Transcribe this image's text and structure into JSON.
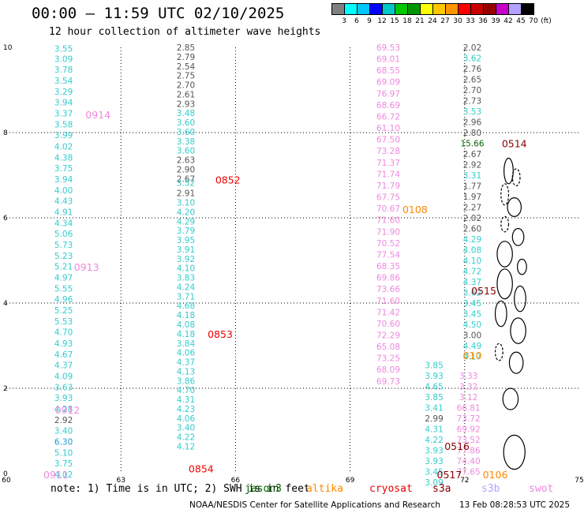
{
  "title": "00:00 – 11:59 UTC 02/10/2025",
  "subtitle": "12 hour collection of altimeter wave heights",
  "color_scale": {
    "unit": "(ft)",
    "labels": [
      "3",
      "6",
      "9",
      "12",
      "15",
      "18",
      "21",
      "24",
      "27",
      "30",
      "33",
      "36",
      "39",
      "42",
      "45",
      "70"
    ],
    "colors": [
      "#808080",
      "#00ffff",
      "#00c8ff",
      "#0000ff",
      "#00c8c8",
      "#00c800",
      "#009600",
      "#ffff00",
      "#ffc800",
      "#ff9600",
      "#ff0000",
      "#c80000",
      "#960000",
      "#c800c8",
      "#b4a0ff",
      "#000000"
    ]
  },
  "axes": {
    "x_ticks": [
      "60",
      "63",
      "66",
      "69",
      "72",
      "75"
    ],
    "y_ticks": [
      "0",
      "2",
      "4",
      "6",
      "8",
      "10"
    ]
  },
  "track_colors": {
    "jason": "#33cccc",
    "gray": "#555555",
    "swot": "#ee88dd",
    "cryosat": "#ee0000",
    "s3a": "#880000",
    "altika": "#ff8800",
    "jason3": "#006600"
  },
  "tracks": [
    {
      "lon": 61.5,
      "color": "jason",
      "readings": [
        {
          "lat": 9.97,
          "v": "3.55"
        },
        {
          "lat": 9.73,
          "v": "3.09"
        },
        {
          "lat": 9.48,
          "v": "3.78"
        },
        {
          "lat": 9.22,
          "v": "3.54"
        },
        {
          "lat": 8.96,
          "v": "3.29"
        },
        {
          "lat": 8.71,
          "v": "3.94"
        },
        {
          "lat": 8.45,
          "v": "3.37"
        },
        {
          "lat": 8.19,
          "v": "3.58"
        },
        {
          "lat": 7.94,
          "v": "3.99"
        },
        {
          "lat": 7.68,
          "v": "4.02"
        },
        {
          "lat": 7.42,
          "v": "4.38"
        },
        {
          "lat": 7.17,
          "v": "3.75"
        },
        {
          "lat": 6.91,
          "v": "3.94"
        },
        {
          "lat": 6.65,
          "v": "4.00"
        },
        {
          "lat": 6.4,
          "v": "4.43"
        },
        {
          "lat": 6.14,
          "v": "4.91"
        },
        {
          "lat": 5.88,
          "v": "4.34"
        },
        {
          "lat": 5.63,
          "v": "5.06"
        },
        {
          "lat": 5.37,
          "v": "5.73"
        },
        {
          "lat": 5.11,
          "v": "5.23"
        },
        {
          "lat": 4.86,
          "v": "5.21"
        },
        {
          "lat": 4.6,
          "v": "4.97"
        },
        {
          "lat": 4.34,
          "v": "5.55"
        },
        {
          "lat": 4.09,
          "v": "4.96"
        },
        {
          "lat": 3.83,
          "v": "5.25"
        },
        {
          "lat": 3.57,
          "v": "5.53"
        },
        {
          "lat": 3.32,
          "v": "4.70"
        },
        {
          "lat": 3.06,
          "v": "4.93"
        },
        {
          "lat": 2.8,
          "v": "4.67"
        },
        {
          "lat": 2.55,
          "v": "4.37"
        },
        {
          "lat": 2.29,
          "v": "4.09"
        },
        {
          "lat": 2.03,
          "v": "3.63"
        },
        {
          "lat": 1.78,
          "v": "3.93"
        },
        {
          "lat": 1.52,
          "v": "4.28"
        },
        {
          "lat": 1.26,
          "v": "2.92",
          "c": "gray"
        },
        {
          "lat": 1.01,
          "v": "3.40"
        },
        {
          "lat": 0.75,
          "v": "6.30",
          "c": "#1a9ad0"
        },
        {
          "lat": 0.49,
          "v": "5.10"
        },
        {
          "lat": 0.24,
          "v": "3.75"
        },
        {
          "lat": -0.02,
          "v": "4.02"
        }
      ]
    },
    {
      "lon": 64.7,
      "color": "jason",
      "readings": [
        {
          "lat": 10.0,
          "v": "2.85",
          "c": "gray"
        },
        {
          "lat": 9.78,
          "v": "2.79",
          "c": "gray"
        },
        {
          "lat": 9.56,
          "v": "2.54",
          "c": "gray"
        },
        {
          "lat": 9.34,
          "v": "2.75",
          "c": "gray"
        },
        {
          "lat": 9.12,
          "v": "2.70",
          "c": "gray"
        },
        {
          "lat": 8.9,
          "v": "2.61",
          "c": "gray"
        },
        {
          "lat": 8.68,
          "v": "2.93",
          "c": "gray"
        },
        {
          "lat": 8.46,
          "v": "3.48"
        },
        {
          "lat": 8.24,
          "v": "3.60"
        },
        {
          "lat": 8.02,
          "v": "3.60"
        },
        {
          "lat": 7.8,
          "v": "3.38"
        },
        {
          "lat": 7.58,
          "v": "3.60"
        },
        {
          "lat": 7.36,
          "v": "2.63",
          "c": "gray"
        },
        {
          "lat": 7.14,
          "v": "2.90",
          "c": "gray"
        },
        {
          "lat": 6.92,
          "v": "2.67",
          "c": "gray"
        },
        {
          "lat": 6.82,
          "v": "3.52"
        },
        {
          "lat": 6.58,
          "v": "2.91",
          "c": "gray"
        },
        {
          "lat": 6.36,
          "v": "3.10"
        },
        {
          "lat": 6.14,
          "v": "4.20"
        },
        {
          "lat": 5.92,
          "v": "4.29"
        },
        {
          "lat": 5.7,
          "v": "3.79"
        },
        {
          "lat": 5.48,
          "v": "3.95"
        },
        {
          "lat": 5.26,
          "v": "3.91"
        },
        {
          "lat": 5.04,
          "v": "3.92"
        },
        {
          "lat": 4.82,
          "v": "4.10"
        },
        {
          "lat": 4.6,
          "v": "3.83"
        },
        {
          "lat": 4.38,
          "v": "4.24"
        },
        {
          "lat": 4.16,
          "v": "3.71"
        },
        {
          "lat": 3.94,
          "v": "4.68"
        },
        {
          "lat": 3.72,
          "v": "4.18"
        },
        {
          "lat": 3.5,
          "v": "4.08"
        },
        {
          "lat": 3.28,
          "v": "4.18"
        },
        {
          "lat": 3.06,
          "v": "3.84"
        },
        {
          "lat": 2.84,
          "v": "4.06"
        },
        {
          "lat": 2.62,
          "v": "4.37"
        },
        {
          "lat": 2.4,
          "v": "4.13"
        },
        {
          "lat": 2.18,
          "v": "3.86"
        },
        {
          "lat": 1.96,
          "v": "4.70"
        },
        {
          "lat": 1.74,
          "v": "4.31"
        },
        {
          "lat": 1.52,
          "v": "4.23"
        },
        {
          "lat": 1.3,
          "v": "4.06"
        },
        {
          "lat": 1.08,
          "v": "3.40"
        },
        {
          "lat": 0.86,
          "v": "4.22"
        },
        {
          "lat": 0.64,
          "v": "4.12"
        }
      ]
    },
    {
      "lon": 70.0,
      "color": "swot",
      "readings": [
        {
          "lat": 10.0,
          "v": "69.53"
        },
        {
          "lat": 9.73,
          "v": "69.01"
        },
        {
          "lat": 9.46,
          "v": "68.55"
        },
        {
          "lat": 9.19,
          "v": "69.09"
        },
        {
          "lat": 8.92,
          "v": "76.97"
        },
        {
          "lat": 8.65,
          "v": "68.69"
        },
        {
          "lat": 8.38,
          "v": "66.72"
        },
        {
          "lat": 8.11,
          "v": "61.10"
        },
        {
          "lat": 7.84,
          "v": "67.50"
        },
        {
          "lat": 7.57,
          "v": "73.28"
        },
        {
          "lat": 7.3,
          "v": "71.37"
        },
        {
          "lat": 7.03,
          "v": "71.74"
        },
        {
          "lat": 6.76,
          "v": "71.79"
        },
        {
          "lat": 6.49,
          "v": "67.75"
        },
        {
          "lat": 6.22,
          "v": "70.67"
        },
        {
          "lat": 5.95,
          "v": "71.60"
        },
        {
          "lat": 5.68,
          "v": "71.90"
        },
        {
          "lat": 5.41,
          "v": "70.52"
        },
        {
          "lat": 5.14,
          "v": "77.54"
        },
        {
          "lat": 4.87,
          "v": "68.35"
        },
        {
          "lat": 4.6,
          "v": "69.86"
        },
        {
          "lat": 4.33,
          "v": "73.66"
        },
        {
          "lat": 4.06,
          "v": "71.60"
        },
        {
          "lat": 3.79,
          "v": "71.42"
        },
        {
          "lat": 3.52,
          "v": "70.60"
        },
        {
          "lat": 3.25,
          "v": "72.29"
        },
        {
          "lat": 2.98,
          "v": "65.08"
        },
        {
          "lat": 2.71,
          "v": "73.25"
        },
        {
          "lat": 2.44,
          "v": "68.09"
        },
        {
          "lat": 2.17,
          "v": "69.73"
        }
      ]
    },
    {
      "lon": 72.2,
      "color": "gray",
      "readings": [
        {
          "lat": 10.0,
          "v": "2.02"
        },
        {
          "lat": 9.75,
          "v": "3.62",
          "c": "jason"
        },
        {
          "lat": 9.5,
          "v": "2.76"
        },
        {
          "lat": 9.25,
          "v": "2.65"
        },
        {
          "lat": 9.0,
          "v": "2.70"
        },
        {
          "lat": 8.75,
          "v": "2.73"
        },
        {
          "lat": 8.5,
          "v": "3.53",
          "c": "jason"
        },
        {
          "lat": 8.25,
          "v": "2.96"
        },
        {
          "lat": 8.0,
          "v": "2.80"
        },
        {
          "lat": 7.75,
          "v": "15.66",
          "c": "jason3"
        },
        {
          "lat": 7.5,
          "v": "2.67"
        },
        {
          "lat": 7.25,
          "v": "2.92"
        },
        {
          "lat": 7.0,
          "v": "3.31",
          "c": "jason"
        },
        {
          "lat": 6.75,
          "v": "1.77"
        },
        {
          "lat": 6.5,
          "v": "1.97"
        },
        {
          "lat": 6.25,
          "v": "2.27"
        },
        {
          "lat": 6.0,
          "v": "2.02"
        },
        {
          "lat": 5.75,
          "v": "2.60"
        },
        {
          "lat": 5.5,
          "v": "4.29",
          "c": "jason"
        },
        {
          "lat": 5.25,
          "v": "4.08",
          "c": "jason"
        },
        {
          "lat": 5.0,
          "v": "4.10",
          "c": "jason"
        },
        {
          "lat": 4.75,
          "v": "4.72",
          "c": "jason"
        },
        {
          "lat": 4.5,
          "v": "4.37",
          "c": "jason"
        },
        {
          "lat": 4.25,
          "v": "3.62",
          "c": "jason"
        },
        {
          "lat": 4.0,
          "v": "3.45",
          "c": "jason"
        },
        {
          "lat": 3.75,
          "v": "3.45",
          "c": "jason"
        },
        {
          "lat": 3.5,
          "v": "4.50",
          "c": "jason"
        },
        {
          "lat": 3.25,
          "v": "3.00"
        },
        {
          "lat": 3.0,
          "v": "4.49",
          "c": "jason"
        },
        {
          "lat": 2.75,
          "v": "4.17",
          "c": "jason"
        }
      ]
    },
    {
      "lon": 71.2,
      "color": "jason",
      "readings": [
        {
          "lat": 2.55,
          "v": "3.85"
        },
        {
          "lat": 2.3,
          "v": "3.93"
        },
        {
          "lat": 2.05,
          "v": "4.65"
        },
        {
          "lat": 1.8,
          "v": "3.85"
        },
        {
          "lat": 1.55,
          "v": "3.41"
        },
        {
          "lat": 1.3,
          "v": "2.99",
          "c": "gray"
        },
        {
          "lat": 1.05,
          "v": "4.31"
        },
        {
          "lat": 0.8,
          "v": "4.22"
        },
        {
          "lat": 0.55,
          "v": "3.93"
        },
        {
          "lat": 0.3,
          "v": "3.93"
        },
        {
          "lat": 0.05,
          "v": "3.45"
        },
        {
          "lat": -0.2,
          "v": "3.09"
        }
      ]
    },
    {
      "lon": 72.1,
      "color": "swot",
      "readings": [
        {
          "lat": 2.3,
          "v": "3.33"
        },
        {
          "lat": 2.05,
          "v": "3.32"
        },
        {
          "lat": 1.8,
          "v": "3.12"
        },
        {
          "lat": 1.55,
          "v": "66.81"
        },
        {
          "lat": 1.3,
          "v": "73.72"
        },
        {
          "lat": 1.05,
          "v": "69.92"
        },
        {
          "lat": 0.8,
          "v": "73.52"
        },
        {
          "lat": 0.55,
          "v": "77.86"
        },
        {
          "lat": 0.3,
          "v": "74.40"
        },
        {
          "lat": 0.05,
          "v": "77.65"
        }
      ]
    }
  ],
  "pass_labels": [
    {
      "text": "0914",
      "lon": 62.4,
      "lat": 8.43,
      "c": "swot"
    },
    {
      "text": "0913",
      "lon": 62.1,
      "lat": 4.85,
      "c": "swot"
    },
    {
      "text": "0912",
      "lon": 61.6,
      "lat": 1.5,
      "c": "swot"
    },
    {
      "text": "0911",
      "lon": 61.3,
      "lat": -0.02,
      "c": "swot"
    },
    {
      "text": "0852",
      "lon": 65.8,
      "lat": 6.9,
      "c": "cryosat"
    },
    {
      "text": "0853",
      "lon": 65.6,
      "lat": 3.28,
      "c": "cryosat"
    },
    {
      "text": "0854",
      "lon": 65.1,
      "lat": 0.12,
      "c": "cryosat"
    },
    {
      "text": "0108",
      "lon": 70.7,
      "lat": 6.2,
      "c": "altika"
    },
    {
      "text": "010",
      "lon": 72.2,
      "lat": 2.78,
      "c": "altika"
    },
    {
      "text": "0106",
      "lon": 72.8,
      "lat": -0.02,
      "c": "altika"
    },
    {
      "text": "0514",
      "lon": 73.3,
      "lat": 7.75,
      "c": "s3a"
    },
    {
      "text": "0515",
      "lon": 72.5,
      "lat": 4.3,
      "c": "s3a"
    },
    {
      "text": "0516",
      "lon": 71.8,
      "lat": 0.65,
      "c": "s3a"
    },
    {
      "text": "0517",
      "lon": 71.6,
      "lat": -0.02,
      "c": "s3a"
    }
  ],
  "legend": {
    "note": "note:  1) Time is in UTC; 2) SWH is in feet",
    "jason3": "jason3",
    "altika": "altika",
    "cryosat": "cryosat",
    "s3a": "s3a",
    "s3b": "s3b",
    "swot": "swot"
  },
  "credit": "NOAA/NESDIS Center for Satellite Applications and Research",
  "generated": "13 Feb 08:28:53 UTC 2025"
}
